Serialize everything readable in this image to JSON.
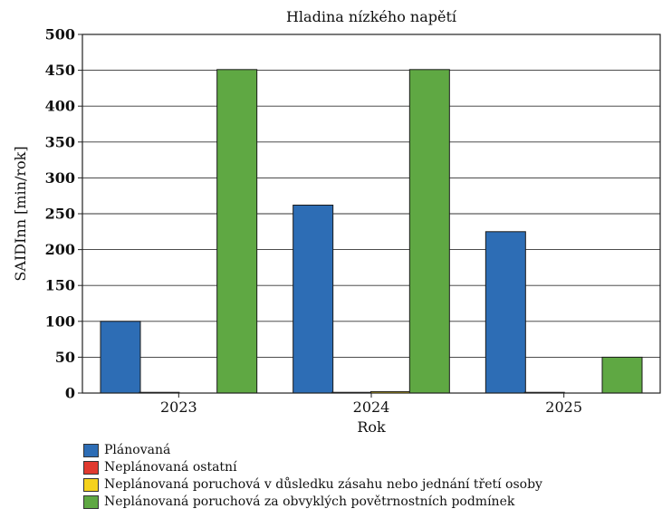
{
  "chart_data": {
    "type": "bar",
    "title": "",
    "subtitle": "Hladina nízkého napětí",
    "xlabel": "Rok",
    "ylabel": "SAIDInn [min/rok]",
    "categories": [
      "2023",
      "2024",
      "2025"
    ],
    "ylim": [
      0,
      500
    ],
    "yticks": [
      0,
      50,
      100,
      150,
      200,
      250,
      300,
      350,
      400,
      450,
      500
    ],
    "grid": true,
    "legend_position": "bottom-left",
    "series": [
      {
        "name": "Plánovaná",
        "color": "#2d6db5",
        "values": [
          100,
          262,
          225
        ]
      },
      {
        "name": "Neplánovaná ostatní",
        "color": "#e03a2f",
        "values": [
          1,
          1,
          1
        ]
      },
      {
        "name": "Neplánovaná poruchová v důsledku zásahu nebo jednání třetí osoby",
        "color": "#f5d21c",
        "values": [
          0,
          2,
          0
        ]
      },
      {
        "name": "Neplánovaná poruchová za obvyklých povětrnostních podmínek",
        "color": "#5fa843",
        "values": [
          451,
          451,
          50
        ]
      }
    ]
  }
}
